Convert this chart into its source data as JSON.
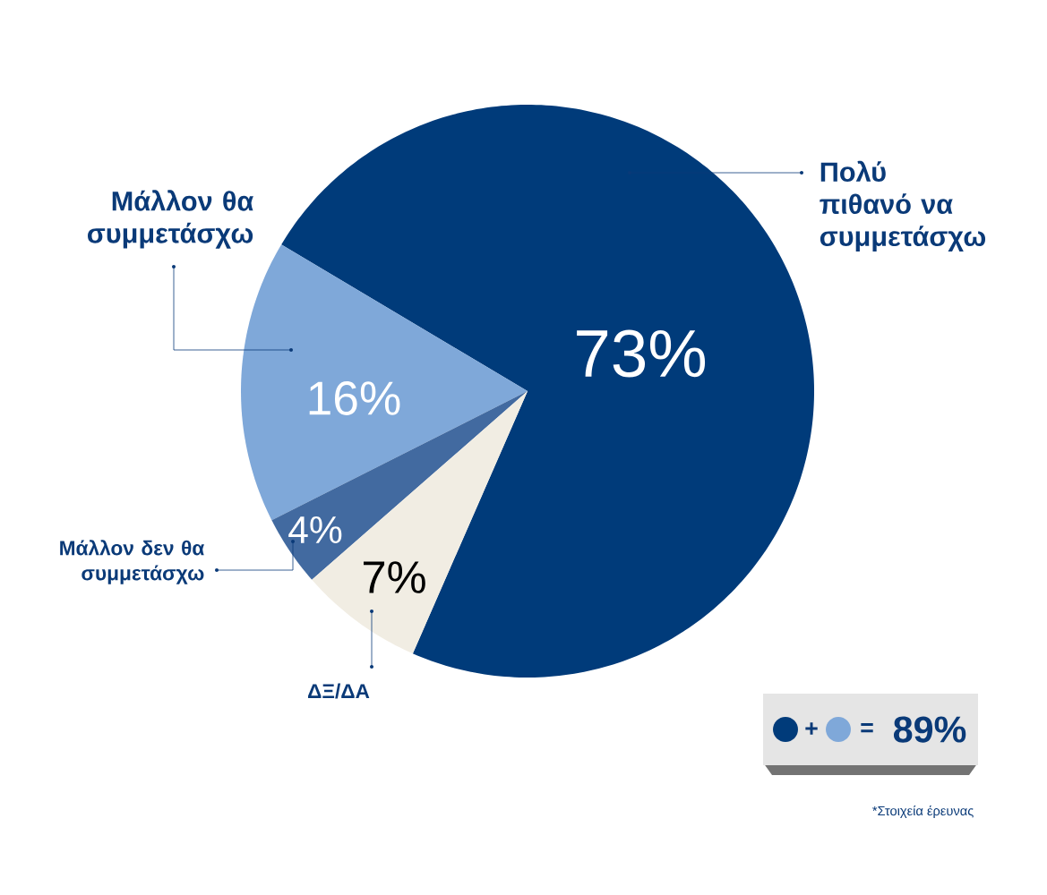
{
  "chart_data": {
    "type": "pie",
    "categories": [
      "Πολύ πιθανό να συμμετάσχω",
      "Μάλλον θα συμμετάσχω",
      "Μάλλον δεν θα συμμετάσχω",
      "ΔΞ/ΔΑ"
    ],
    "values": [
      73,
      16,
      4,
      7
    ],
    "colors": [
      "#003b7a",
      "#7fa8d9",
      "#426aa0",
      "#f1ede3"
    ],
    "value_labels": [
      "73%",
      "16%",
      "4%",
      "7%"
    ],
    "annotations": [
      "+",
      "=",
      "89%",
      "*Στοιχεία έρευνας"
    ]
  }
}
